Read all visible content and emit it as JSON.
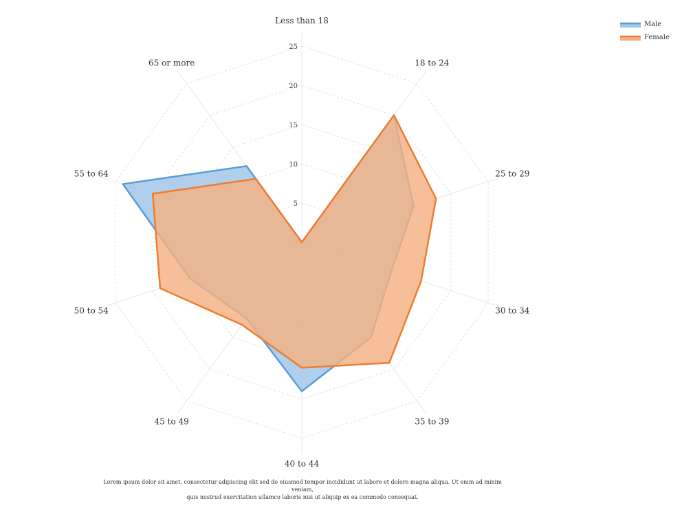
{
  "chart_data": {
    "type": "radar",
    "categories": [
      "Less than 18",
      "18 to 24",
      "25 to 29",
      "30 to 34",
      "35 to 39",
      "40 to 44",
      "45 to 49",
      "50 to 54",
      "55 to 64",
      "65 or more"
    ],
    "series": [
      {
        "name": "Male",
        "values": [
          0,
          20,
          15,
          12,
          15,
          19,
          12,
          15,
          24,
          12
        ],
        "color": "#5b9bd5",
        "fill": "#9fc5e8"
      },
      {
        "name": "Female",
        "values": [
          0,
          20,
          18,
          16,
          19,
          16,
          13,
          19,
          20,
          10
        ],
        "color": "#ed7d31",
        "fill": "#f4b183"
      }
    ],
    "rlim": [
      0,
      25
    ],
    "ticks": [
      0,
      5,
      10,
      15,
      20,
      25
    ],
    "grid": true,
    "legend": "top-right"
  },
  "caption": {
    "line1": "Lorem ipsum dolor sit amet, consectetur adipiscing elit sed do eiusmod tempor incididunt ut labore et dolore magna aliqua. Ut enim ad minim veniam,",
    "line2": "quis nostrud exercitation ullamco laboris nisi ut aliquip ex ea commodo consequat."
  }
}
